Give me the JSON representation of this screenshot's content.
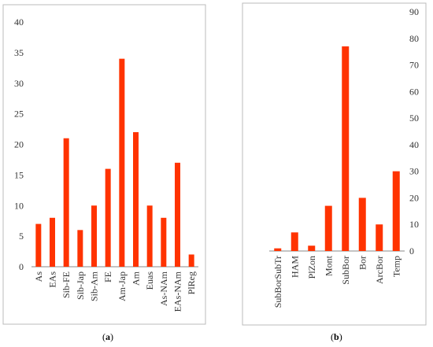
{
  "chart_data": [
    {
      "type": "bar",
      "panel": "a",
      "categories": [
        "As",
        "EAs",
        "Sib-FE",
        "Sib-Jap",
        "Sib-Am",
        "FE",
        "Am-Jap",
        "Am",
        "Euas",
        "As-NAm",
        "EAs-NAm",
        "PlReg"
      ],
      "values": [
        7,
        8,
        21,
        6,
        10,
        16,
        34,
        22,
        10,
        8,
        17,
        2
      ],
      "ylim": [
        0,
        40
      ],
      "yticks": [
        0,
        5,
        10,
        15,
        20,
        25,
        30,
        35,
        40
      ],
      "axis_side": "left",
      "grid": false,
      "bar_color": "#ff3300"
    },
    {
      "type": "bar",
      "panel": "b",
      "categories": [
        "SubBorSubTr",
        "HAM",
        "PlZon",
        "Mont",
        "SubBor",
        "Bor",
        "ArcBor",
        "Temp"
      ],
      "values": [
        1,
        7,
        2,
        17,
        77,
        20,
        10,
        30
      ],
      "ylim": [
        0,
        90
      ],
      "yticks": [
        0,
        10,
        20,
        30,
        40,
        50,
        60,
        70,
        80,
        90
      ],
      "axis_side": "right",
      "grid": false,
      "bar_color": "#ff3300"
    }
  ],
  "labels": {
    "a": "a",
    "b": "b"
  }
}
